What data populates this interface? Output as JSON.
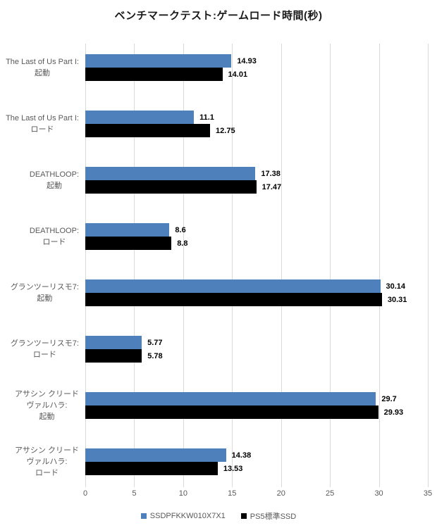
{
  "colors": {
    "series1_blue": "#4e80bc",
    "series2_black": "#000000",
    "gridline": "#d9d9d9",
    "axis_text": "#595959",
    "category_text": "#595959",
    "value_text": "#000000",
    "title_text": "#1a1a1a",
    "background": "#ffffff"
  },
  "chart_data": {
    "type": "bar",
    "orientation": "horizontal",
    "title": "ベンチマークテスト:ゲームロード時間(秒)",
    "xlabel": "",
    "ylabel": "",
    "xlim": [
      0,
      35
    ],
    "xticks": [
      0,
      5,
      10,
      15,
      20,
      25,
      30,
      35
    ],
    "grid": true,
    "value_labels": true,
    "legend_position": "bottom",
    "categories": [
      "The Last of Us Part I:\n起動",
      "The Last of Us Part I:\nロード",
      "DEATHLOOP:\n起動",
      "DEATHLOOP:\nロード",
      "グランツーリスモ7:\n起動",
      "グランツーリスモ7:\nロード",
      "アサシン クリード\nヴァルハラ:\n起動",
      "アサシン クリード\nヴァルハラ:\nロード"
    ],
    "series": [
      {
        "name": "SSDPFKKW010X7X1",
        "color": "#4e80bc",
        "values": [
          14.93,
          11.1,
          17.38,
          8.6,
          30.14,
          5.77,
          29.7,
          14.38
        ]
      },
      {
        "name": "PS5標準SSD",
        "color": "#000000",
        "values": [
          14.01,
          12.75,
          17.47,
          8.8,
          30.31,
          5.78,
          29.93,
          13.53
        ]
      }
    ]
  }
}
